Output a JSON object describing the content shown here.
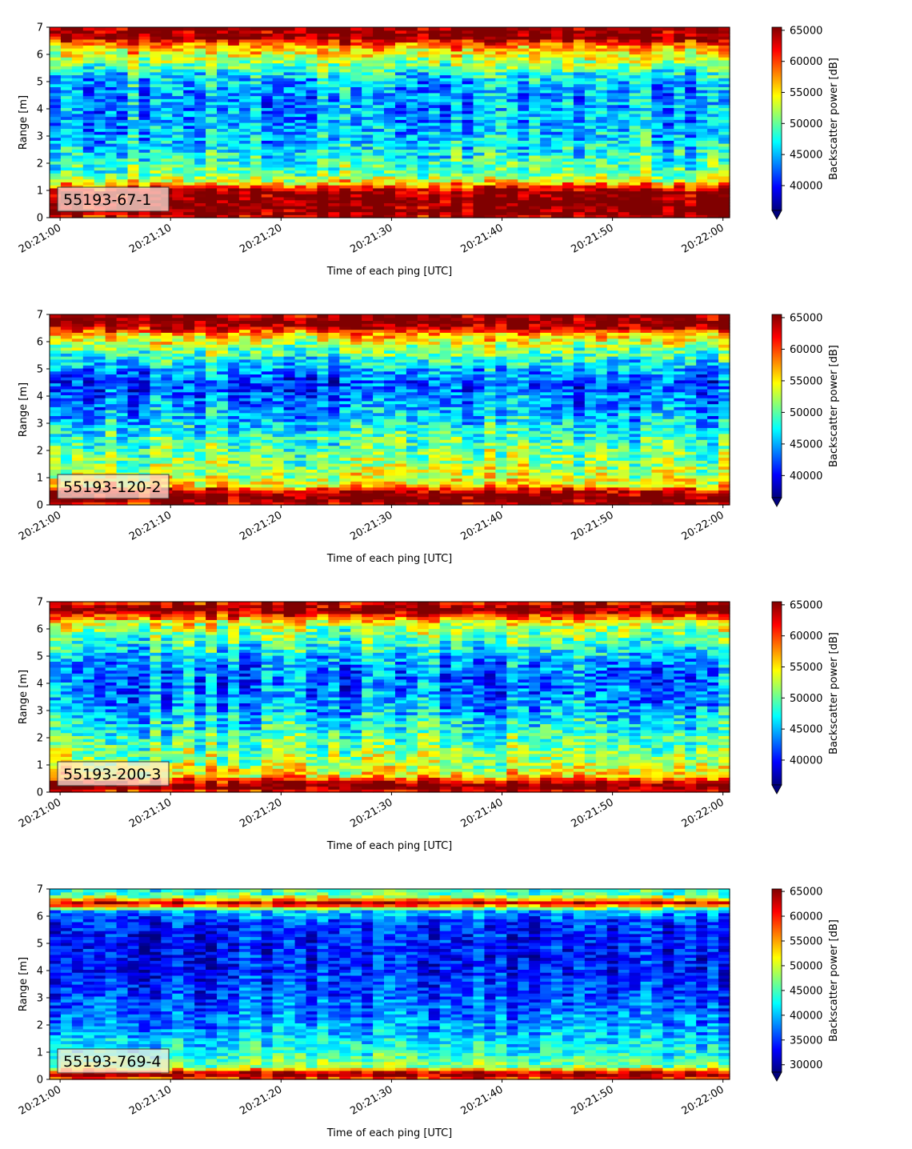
{
  "chart_data": [
    {
      "type": "heatmap",
      "label": "55193-67-1",
      "xlabel": "Time of each ping [UTC]",
      "ylabel": "Range [m]",
      "xticks": [
        "20:21:00",
        "20:21:10",
        "20:21:20",
        "20:21:30",
        "20:21:40",
        "20:21:50",
        "20:22:00"
      ],
      "xrange": [
        "20:21:00",
        "20:22:00"
      ],
      "yticks": [
        0,
        1,
        2,
        3,
        4,
        5,
        6,
        7
      ],
      "ylim": [
        0,
        7
      ],
      "colorbar": {
        "label": "Backscatter power [dB]",
        "range": [
          36000,
          65500
        ],
        "ticks": [
          40000,
          45000,
          50000,
          55000,
          60000,
          65000
        ],
        "colormap": "jet",
        "extend": "min"
      },
      "profile": [
        {
          "range": 0.0,
          "value": 62000
        },
        {
          "range": 0.15,
          "value": 66000
        },
        {
          "range": 0.3,
          "value": 66000
        },
        {
          "range": 0.6,
          "value": 66000
        },
        {
          "range": 0.9,
          "value": 65500
        },
        {
          "range": 1.1,
          "value": 62000
        },
        {
          "range": 1.3,
          "value": 55000
        },
        {
          "range": 1.6,
          "value": 50000
        },
        {
          "range": 2.0,
          "value": 49000
        },
        {
          "range": 2.5,
          "value": 47000
        },
        {
          "range": 3.0,
          "value": 45500
        },
        {
          "range": 3.5,
          "value": 45000
        },
        {
          "range": 4.0,
          "value": 44500
        },
        {
          "range": 4.5,
          "value": 44500
        },
        {
          "range": 5.0,
          "value": 45500
        },
        {
          "range": 5.3,
          "value": 47500
        },
        {
          "range": 5.6,
          "value": 51000
        },
        {
          "range": 6.0,
          "value": 54500
        },
        {
          "range": 6.3,
          "value": 57000
        },
        {
          "range": 6.5,
          "value": 62000
        },
        {
          "range": 6.6,
          "value": 66000
        },
        {
          "range": 7.0,
          "value": 66000
        }
      ]
    },
    {
      "type": "heatmap",
      "label": "55193-120-2",
      "xlabel": "Time of each ping [UTC]",
      "ylabel": "Range [m]",
      "xticks": [
        "20:21:00",
        "20:21:10",
        "20:21:20",
        "20:21:30",
        "20:21:40",
        "20:21:50",
        "20:22:00"
      ],
      "xrange": [
        "20:21:00",
        "20:22:00"
      ],
      "yticks": [
        0,
        1,
        2,
        3,
        4,
        5,
        6,
        7
      ],
      "ylim": [
        0,
        7
      ],
      "colorbar": {
        "label": "Backscatter power [dB]",
        "range": [
          36500,
          65500
        ],
        "ticks": [
          40000,
          45000,
          50000,
          55000,
          60000,
          65000
        ],
        "colormap": "jet",
        "extend": "min"
      },
      "profile": [
        {
          "range": 0.0,
          "value": 62000
        },
        {
          "range": 0.15,
          "value": 66000
        },
        {
          "range": 0.4,
          "value": 66000
        },
        {
          "range": 0.55,
          "value": 62000
        },
        {
          "range": 0.7,
          "value": 56000
        },
        {
          "range": 1.0,
          "value": 53500
        },
        {
          "range": 1.5,
          "value": 51500
        },
        {
          "range": 2.0,
          "value": 50500
        },
        {
          "range": 2.5,
          "value": 49000
        },
        {
          "range": 3.0,
          "value": 46500
        },
        {
          "range": 3.5,
          "value": 45000
        },
        {
          "range": 4.0,
          "value": 43500
        },
        {
          "range": 4.5,
          "value": 42000
        },
        {
          "range": 5.0,
          "value": 45000
        },
        {
          "range": 5.5,
          "value": 49500
        },
        {
          "range": 6.0,
          "value": 53500
        },
        {
          "range": 6.3,
          "value": 57000
        },
        {
          "range": 6.5,
          "value": 63000
        },
        {
          "range": 6.7,
          "value": 66000
        },
        {
          "range": 7.0,
          "value": 65000
        }
      ]
    },
    {
      "type": "heatmap",
      "label": "55193-200-3",
      "xlabel": "Time of each ping [UTC]",
      "ylabel": "Range [m]",
      "xticks": [
        "20:21:00",
        "20:21:10",
        "20:21:20",
        "20:21:30",
        "20:21:40",
        "20:21:50",
        "20:22:00"
      ],
      "xrange": [
        "20:21:00",
        "20:22:00"
      ],
      "yticks": [
        0,
        1,
        2,
        3,
        4,
        5,
        6,
        7
      ],
      "ylim": [
        0,
        7
      ],
      "colorbar": {
        "label": "Backscatter power [dB]",
        "range": [
          36000,
          65500
        ],
        "ticks": [
          40000,
          45000,
          50000,
          55000,
          60000,
          65000
        ],
        "colormap": "jet",
        "extend": "min"
      },
      "profile": [
        {
          "range": 0.0,
          "value": 60000
        },
        {
          "range": 0.15,
          "value": 66000
        },
        {
          "range": 0.3,
          "value": 66000
        },
        {
          "range": 0.45,
          "value": 61000
        },
        {
          "range": 0.6,
          "value": 55500
        },
        {
          "range": 1.0,
          "value": 52500
        },
        {
          "range": 1.5,
          "value": 51000
        },
        {
          "range": 2.0,
          "value": 49000
        },
        {
          "range": 2.5,
          "value": 47000
        },
        {
          "range": 3.0,
          "value": 45000
        },
        {
          "range": 3.5,
          "value": 43500
        },
        {
          "range": 4.0,
          "value": 43000
        },
        {
          "range": 4.5,
          "value": 43000
        },
        {
          "range": 5.0,
          "value": 45500
        },
        {
          "range": 5.5,
          "value": 48500
        },
        {
          "range": 6.0,
          "value": 51500
        },
        {
          "range": 6.3,
          "value": 55000
        },
        {
          "range": 6.5,
          "value": 61000
        },
        {
          "range": 6.7,
          "value": 66000
        },
        {
          "range": 6.9,
          "value": 64000
        },
        {
          "range": 7.0,
          "value": 61000
        }
      ]
    },
    {
      "type": "heatmap",
      "label": "55193-769-4",
      "xlabel": "Time of each ping [UTC]",
      "ylabel": "Range [m]",
      "xticks": [
        "20:21:00",
        "20:21:10",
        "20:21:20",
        "20:21:30",
        "20:21:40",
        "20:21:50",
        "20:22:00"
      ],
      "xrange": [
        "20:21:00",
        "20:22:00"
      ],
      "yticks": [
        0,
        1,
        2,
        3,
        4,
        5,
        6,
        7
      ],
      "ylim": [
        0,
        7
      ],
      "colorbar": {
        "label": "Backscatter power [dB]",
        "range": [
          28500,
          65500
        ],
        "ticks": [
          30000,
          35000,
          40000,
          45000,
          50000,
          55000,
          60000,
          65000
        ],
        "colormap": "jet",
        "extend": "min"
      },
      "profile": [
        {
          "range": 0.0,
          "value": 55000
        },
        {
          "range": 0.12,
          "value": 64000
        },
        {
          "range": 0.25,
          "value": 64000
        },
        {
          "range": 0.35,
          "value": 56000
        },
        {
          "range": 0.5,
          "value": 47000
        },
        {
          "range": 1.0,
          "value": 43000
        },
        {
          "range": 1.5,
          "value": 41000
        },
        {
          "range": 2.0,
          "value": 38500
        },
        {
          "range": 3.0,
          "value": 36000
        },
        {
          "range": 4.0,
          "value": 34000
        },
        {
          "range": 5.0,
          "value": 33500
        },
        {
          "range": 5.8,
          "value": 35000
        },
        {
          "range": 6.2,
          "value": 40000
        },
        {
          "range": 6.4,
          "value": 57000
        },
        {
          "range": 6.5,
          "value": 63000
        },
        {
          "range": 6.62,
          "value": 55000
        },
        {
          "range": 6.8,
          "value": 45000
        },
        {
          "range": 7.0,
          "value": 44000
        }
      ]
    }
  ]
}
